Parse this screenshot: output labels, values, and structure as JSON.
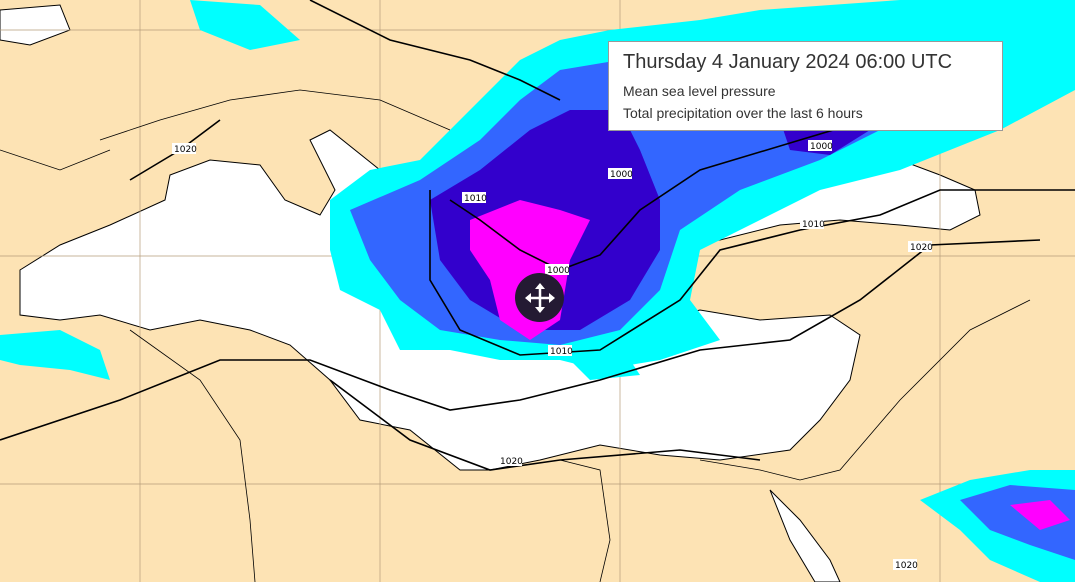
{
  "legend": {
    "title": "Thursday 4 January 2024 06:00 UTC",
    "layers": [
      "Mean sea level pressure",
      "Total precipitation over the last 6 hours"
    ]
  },
  "map": {
    "isobar_labels": [
      "1020",
      "1010",
      "1000",
      "1000",
      "1010",
      "1020",
      "1000",
      "1010",
      "1020",
      "1020"
    ],
    "colors": {
      "land": "#fde3b4",
      "sea": "#ffffff",
      "precip_light": "#00ffff",
      "precip_mid": "#3366ff",
      "precip_heavy": "#3300cc",
      "precip_extreme": "#ff00ff"
    }
  },
  "controls": {
    "move_icon": "move-arrows-icon"
  }
}
